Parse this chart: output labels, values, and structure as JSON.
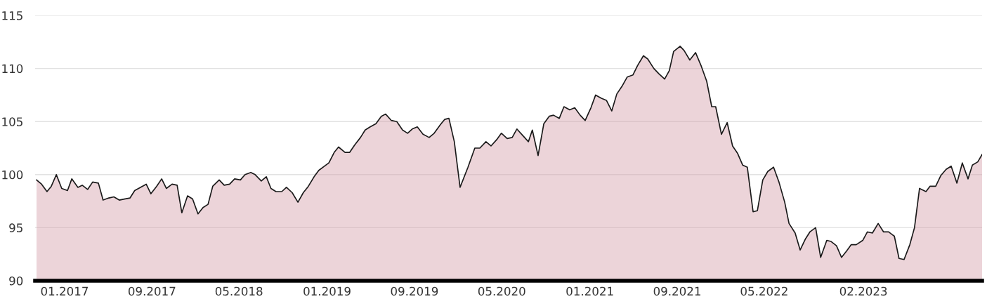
{
  "chart_data": {
    "type": "area",
    "x": [
      "2016-10-15",
      "2016-10-29",
      "2016-11-13",
      "2016-11-25",
      "2016-12-09",
      "2016-12-24",
      "2017-01-09",
      "2017-01-21",
      "2017-02-07",
      "2017-02-19",
      "2017-03-06",
      "2017-03-20",
      "2017-04-05",
      "2017-04-18",
      "2017-05-04",
      "2017-05-18",
      "2017-06-02",
      "2017-06-16",
      "2017-07-02",
      "2017-07-15",
      "2017-07-31",
      "2017-08-16",
      "2017-08-29",
      "2017-09-14",
      "2017-09-28",
      "2017-10-11",
      "2017-10-27",
      "2017-11-10",
      "2017-11-23",
      "2017-12-09",
      "2017-12-23",
      "2018-01-07",
      "2018-01-21",
      "2018-02-04",
      "2018-02-17",
      "2018-03-07",
      "2018-03-21",
      "2018-04-05",
      "2018-04-19",
      "2018-05-05",
      "2018-05-18",
      "2018-06-03",
      "2018-06-15",
      "2018-07-02",
      "2018-07-16",
      "2018-07-29",
      "2018-08-12",
      "2018-08-28",
      "2018-09-10",
      "2018-09-26",
      "2018-10-12",
      "2018-10-27",
      "2018-11-10",
      "2018-11-26",
      "2018-12-09",
      "2018-12-25",
      "2019-01-06",
      "2019-01-21",
      "2019-02-02",
      "2019-02-20",
      "2019-03-05",
      "2019-03-19",
      "2019-04-04",
      "2019-04-17",
      "2019-05-01",
      "2019-05-17",
      "2019-06-01",
      "2019-06-13",
      "2019-06-29",
      "2019-07-14",
      "2019-07-30",
      "2019-08-13",
      "2019-08-26",
      "2019-09-09",
      "2019-09-25",
      "2019-10-12",
      "2019-10-26",
      "2019-11-12",
      "2019-11-24",
      "2019-12-06",
      "2019-12-21",
      "2020-01-06",
      "2020-01-28",
      "2020-02-16",
      "2020-03-01",
      "2020-03-18",
      "2020-04-01",
      "2020-04-17",
      "2020-04-30",
      "2020-05-16",
      "2020-05-30",
      "2020-06-12",
      "2020-06-28",
      "2020-07-14",
      "2020-07-25",
      "2020-08-10",
      "2020-08-26",
      "2020-09-10",
      "2020-09-22",
      "2020-10-08",
      "2020-10-21",
      "2020-11-06",
      "2020-11-20",
      "2020-12-05",
      "2020-12-19",
      "2021-01-04",
      "2021-01-17",
      "2021-02-02",
      "2021-02-16",
      "2021-03-03",
      "2021-03-17",
      "2021-03-31",
      "2021-04-15",
      "2021-05-01",
      "2021-05-14",
      "2021-05-30",
      "2021-06-11",
      "2021-06-28",
      "2021-07-12",
      "2021-07-28",
      "2021-08-10",
      "2021-08-22",
      "2021-09-09",
      "2021-09-20",
      "2021-10-06",
      "2021-10-22",
      "2021-11-06",
      "2021-11-22",
      "2021-12-06",
      "2021-12-17",
      "2022-01-02",
      "2022-01-18",
      "2022-02-02",
      "2022-02-16",
      "2022-03-02",
      "2022-03-15",
      "2022-03-31",
      "2022-04-12",
      "2022-04-27",
      "2022-05-11",
      "2022-05-27",
      "2022-06-11",
      "2022-06-27",
      "2022-07-09",
      "2022-07-26",
      "2022-08-09",
      "2022-08-23",
      "2022-09-05",
      "2022-09-21",
      "2022-10-05",
      "2022-10-22",
      "2022-11-03",
      "2022-11-18",
      "2022-12-02",
      "2022-12-16",
      "2022-12-29",
      "2023-01-12",
      "2023-01-30",
      "2023-02-12",
      "2023-02-26",
      "2023-03-14",
      "2023-03-29",
      "2023-04-12",
      "2023-04-28",
      "2023-05-11",
      "2023-05-25",
      "2023-06-10",
      "2023-06-23",
      "2023-07-07",
      "2023-07-25",
      "2023-08-05",
      "2023-08-21",
      "2023-09-04",
      "2023-09-19",
      "2023-10-03",
      "2023-10-19",
      "2023-11-03",
      "2023-11-19",
      "2023-12-01",
      "2023-12-16",
      "2023-12-28"
    ],
    "series": [
      {
        "color": "#d49faa",
        "values": [
          99.5,
          99.1,
          98.4,
          98.9,
          100.0,
          98.7,
          98.5,
          99.6,
          98.8,
          99.0,
          98.6,
          99.3,
          99.2,
          97.6,
          97.8,
          97.9,
          97.6,
          97.7,
          97.8,
          98.5,
          98.8,
          99.1,
          98.2,
          98.9,
          99.6,
          98.7,
          99.1,
          99.0,
          96.4,
          98.0,
          97.7,
          96.3,
          96.9,
          97.2,
          98.9,
          99.5,
          99.0,
          99.1,
          99.6,
          99.5,
          100.0,
          100.2,
          100.0,
          99.4,
          99.8,
          98.7,
          98.4,
          98.4,
          98.8,
          98.3,
          97.4,
          98.3,
          98.9,
          99.8,
          100.4,
          100.8,
          101.1,
          102.1,
          102.6,
          102.1,
          102.1,
          102.8,
          103.5,
          104.2,
          104.5,
          104.8,
          105.5,
          105.7,
          105.1,
          105.0,
          104.2,
          103.9,
          104.3,
          104.5,
          103.8,
          103.5,
          103.9,
          104.7,
          105.2,
          105.3,
          103.1,
          98.8,
          100.7,
          102.5,
          102.5,
          103.1,
          102.7,
          103.3,
          103.9,
          103.4,
          103.5,
          104.3,
          103.7,
          103.1,
          104.2,
          101.8,
          104.8,
          105.5,
          105.6,
          105.3,
          106.4,
          106.1,
          106.3,
          105.6,
          105.1,
          106.3,
          107.5,
          107.2,
          107.0,
          106.0,
          107.6,
          108.3,
          109.2,
          109.4,
          110.3,
          111.2,
          110.9,
          110.0,
          109.5,
          109.0,
          109.8,
          111.6,
          112.1,
          111.7,
          110.8,
          111.5,
          110.3,
          108.8,
          106.4,
          106.4,
          103.8,
          104.9,
          102.7,
          102.0,
          100.9,
          100.7,
          96.5,
          96.6,
          99.5,
          100.3,
          100.7,
          99.3,
          97.4,
          95.4,
          94.5,
          92.9,
          93.9,
          94.6,
          95.0,
          92.2,
          93.8,
          93.7,
          93.3,
          92.2,
          92.8,
          93.4,
          93.4,
          93.8,
          94.6,
          94.5,
          95.4,
          94.6,
          94.6,
          94.2,
          92.1,
          92.0,
          93.4,
          95.0,
          98.7,
          98.4,
          98.9,
          98.9,
          99.9,
          100.5,
          100.8,
          99.2,
          101.1,
          99.6,
          100.9,
          101.2,
          101.9
        ]
      }
    ],
    "xlim": [
      "2016-10-11",
      "2023-12-28"
    ],
    "xticks": [
      {
        "value": "2017-01-01",
        "label": "01.2017"
      },
      {
        "value": "2017-09-01",
        "label": "09.2017"
      },
      {
        "value": "2018-05-01",
        "label": "05.2018"
      },
      {
        "value": "2019-01-01",
        "label": "01.2019"
      },
      {
        "value": "2019-09-01",
        "label": "09.2019"
      },
      {
        "value": "2020-05-01",
        "label": "05.2020"
      },
      {
        "value": "2021-01-01",
        "label": "01.2021"
      },
      {
        "value": "2021-09-01",
        "label": "09.2021"
      },
      {
        "value": "2022-05-01",
        "label": "05.2022"
      },
      {
        "value": "2023-02-01",
        "label": "02.2023"
      }
    ],
    "ylim": [
      90,
      115
    ],
    "yticks": [
      90,
      95,
      100,
      105,
      110,
      115
    ],
    "grid": "y",
    "legend": false,
    "marker": "none",
    "line_style": "solid"
  }
}
